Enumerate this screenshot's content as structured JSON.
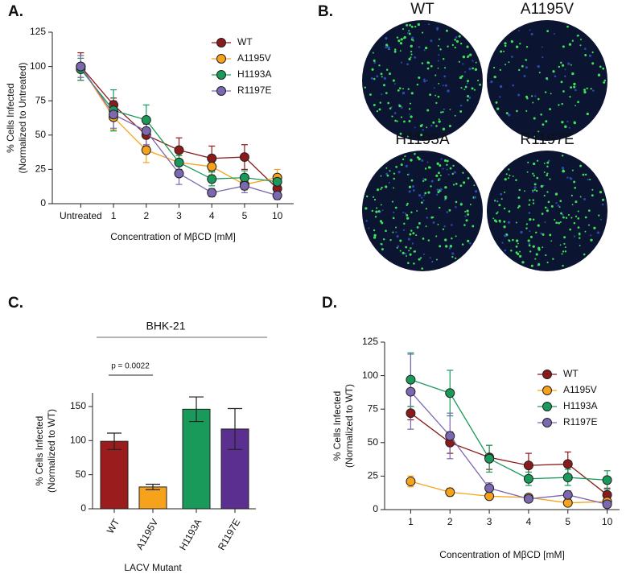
{
  "chart_data": [
    {
      "type": "line",
      "panel": "A.",
      "ylabel": [
        "% Cells Infected",
        "(Normalized to Untreated)"
      ],
      "xlabel": "Concentration of MβCD [mM]",
      "categories": [
        "Untreated",
        "1",
        "2",
        "3",
        "4",
        "5",
        "10"
      ],
      "ylim": [
        0,
        125
      ],
      "yticks": [
        0,
        25,
        50,
        75,
        100,
        125
      ],
      "legend": "top-right",
      "series": [
        {
          "name": "WT",
          "color": "#8b1a1a",
          "values": [
            100,
            72,
            50,
            39,
            33,
            34,
            11
          ],
          "errors": [
            10,
            5,
            8,
            9,
            9,
            9,
            5
          ]
        },
        {
          "name": "A1195V",
          "color": "#f7a21b",
          "values": [
            100,
            63,
            39,
            30,
            27,
            14,
            19
          ],
          "errors": [
            8,
            9,
            9,
            5,
            6,
            4,
            6
          ]
        },
        {
          "name": "H1193A",
          "color": "#1a9a5a",
          "values": [
            98,
            68,
            61,
            30,
            18,
            19,
            16
          ],
          "errors": [
            8,
            15,
            11,
            5,
            5,
            5,
            5
          ]
        },
        {
          "name": "R1197E",
          "color": "#7b68b0",
          "values": [
            100,
            65,
            53,
            22,
            8,
            13,
            6
          ],
          "errors": [
            8,
            10,
            10,
            8,
            3,
            5,
            3
          ]
        }
      ]
    },
    {
      "type": "images",
      "panel": "B.",
      "labels": [
        "WT",
        "A1195V",
        "H1193A",
        "R1197E"
      ]
    },
    {
      "type": "bar",
      "panel": "C.",
      "ylabel": [
        "% Cells Infected",
        "(Normalized to WT)"
      ],
      "xlabel": "LACV Mutant",
      "annotations": [
        "BHK-21",
        "p = 0.0022"
      ],
      "categories": [
        "WT",
        "A1195V",
        "H1193A",
        "R1197E"
      ],
      "values": [
        99,
        32,
        146,
        117
      ],
      "errors": [
        12,
        4,
        18,
        30
      ],
      "colors": [
        "#9b1c1c",
        "#f7a21b",
        "#1a9a5a",
        "#5b2f8f"
      ],
      "ylim": [
        0,
        170
      ],
      "yticks": [
        0,
        50,
        100,
        150
      ]
    },
    {
      "type": "line",
      "panel": "D.",
      "ylabel": [
        "% Cells Infected",
        "(Normalized to WT)"
      ],
      "xlabel": "Concentration of MβCD [mM]",
      "categories": [
        "1",
        "2",
        "3",
        "4",
        "5",
        "10"
      ],
      "ylim": [
        0,
        125
      ],
      "yticks": [
        0,
        25,
        50,
        75,
        100,
        125
      ],
      "legend": "top-right",
      "series": [
        {
          "name": "WT",
          "color": "#8b1a1a",
          "values": [
            72,
            50,
            39,
            33,
            34,
            11
          ],
          "errors": [
            5,
            8,
            9,
            9,
            9,
            5
          ]
        },
        {
          "name": "A1195V",
          "color": "#f7a21b",
          "values": [
            21,
            13,
            10,
            9,
            5,
            6
          ],
          "errors": [
            4,
            3,
            2,
            2,
            2,
            2
          ]
        },
        {
          "name": "H1193A",
          "color": "#1a9a5a",
          "values": [
            97,
            87,
            38,
            23,
            24,
            22
          ],
          "errors": [
            20,
            17,
            10,
            5,
            6,
            7
          ]
        },
        {
          "name": "R1197E",
          "color": "#7b68b0",
          "values": [
            88,
            55,
            16,
            8,
            11,
            4
          ],
          "errors": [
            28,
            17,
            4,
            2,
            3,
            2
          ]
        }
      ]
    }
  ]
}
